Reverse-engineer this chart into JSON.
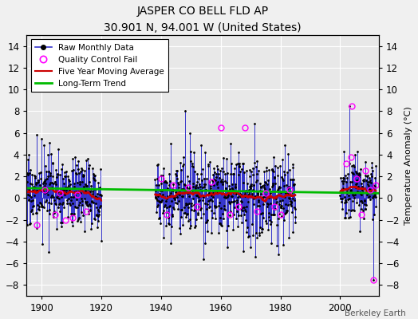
{
  "title": "JASPER CO BELL FLD AP",
  "subtitle": "30.901 N, 94.001 W (United States)",
  "ylabel": "Temperature Anomaly (°C)",
  "credit": "Berkeley Earth",
  "ylim": [
    -9,
    15
  ],
  "yticks": [
    -8,
    -6,
    -4,
    -2,
    0,
    2,
    4,
    6,
    8,
    10,
    12,
    14
  ],
  "xlim": [
    1895,
    2013
  ],
  "xticks": [
    1900,
    1920,
    1940,
    1960,
    1980,
    2000
  ],
  "bg_color": "#e8e8e8",
  "grid_color": "#ffffff",
  "raw_color": "#3333cc",
  "moving_avg_color": "#cc0000",
  "trend_color": "#00bb00",
  "qc_fail_color": "#ff00ff",
  "seed": 17,
  "fig_width": 5.24,
  "fig_height": 4.0,
  "dpi": 100
}
